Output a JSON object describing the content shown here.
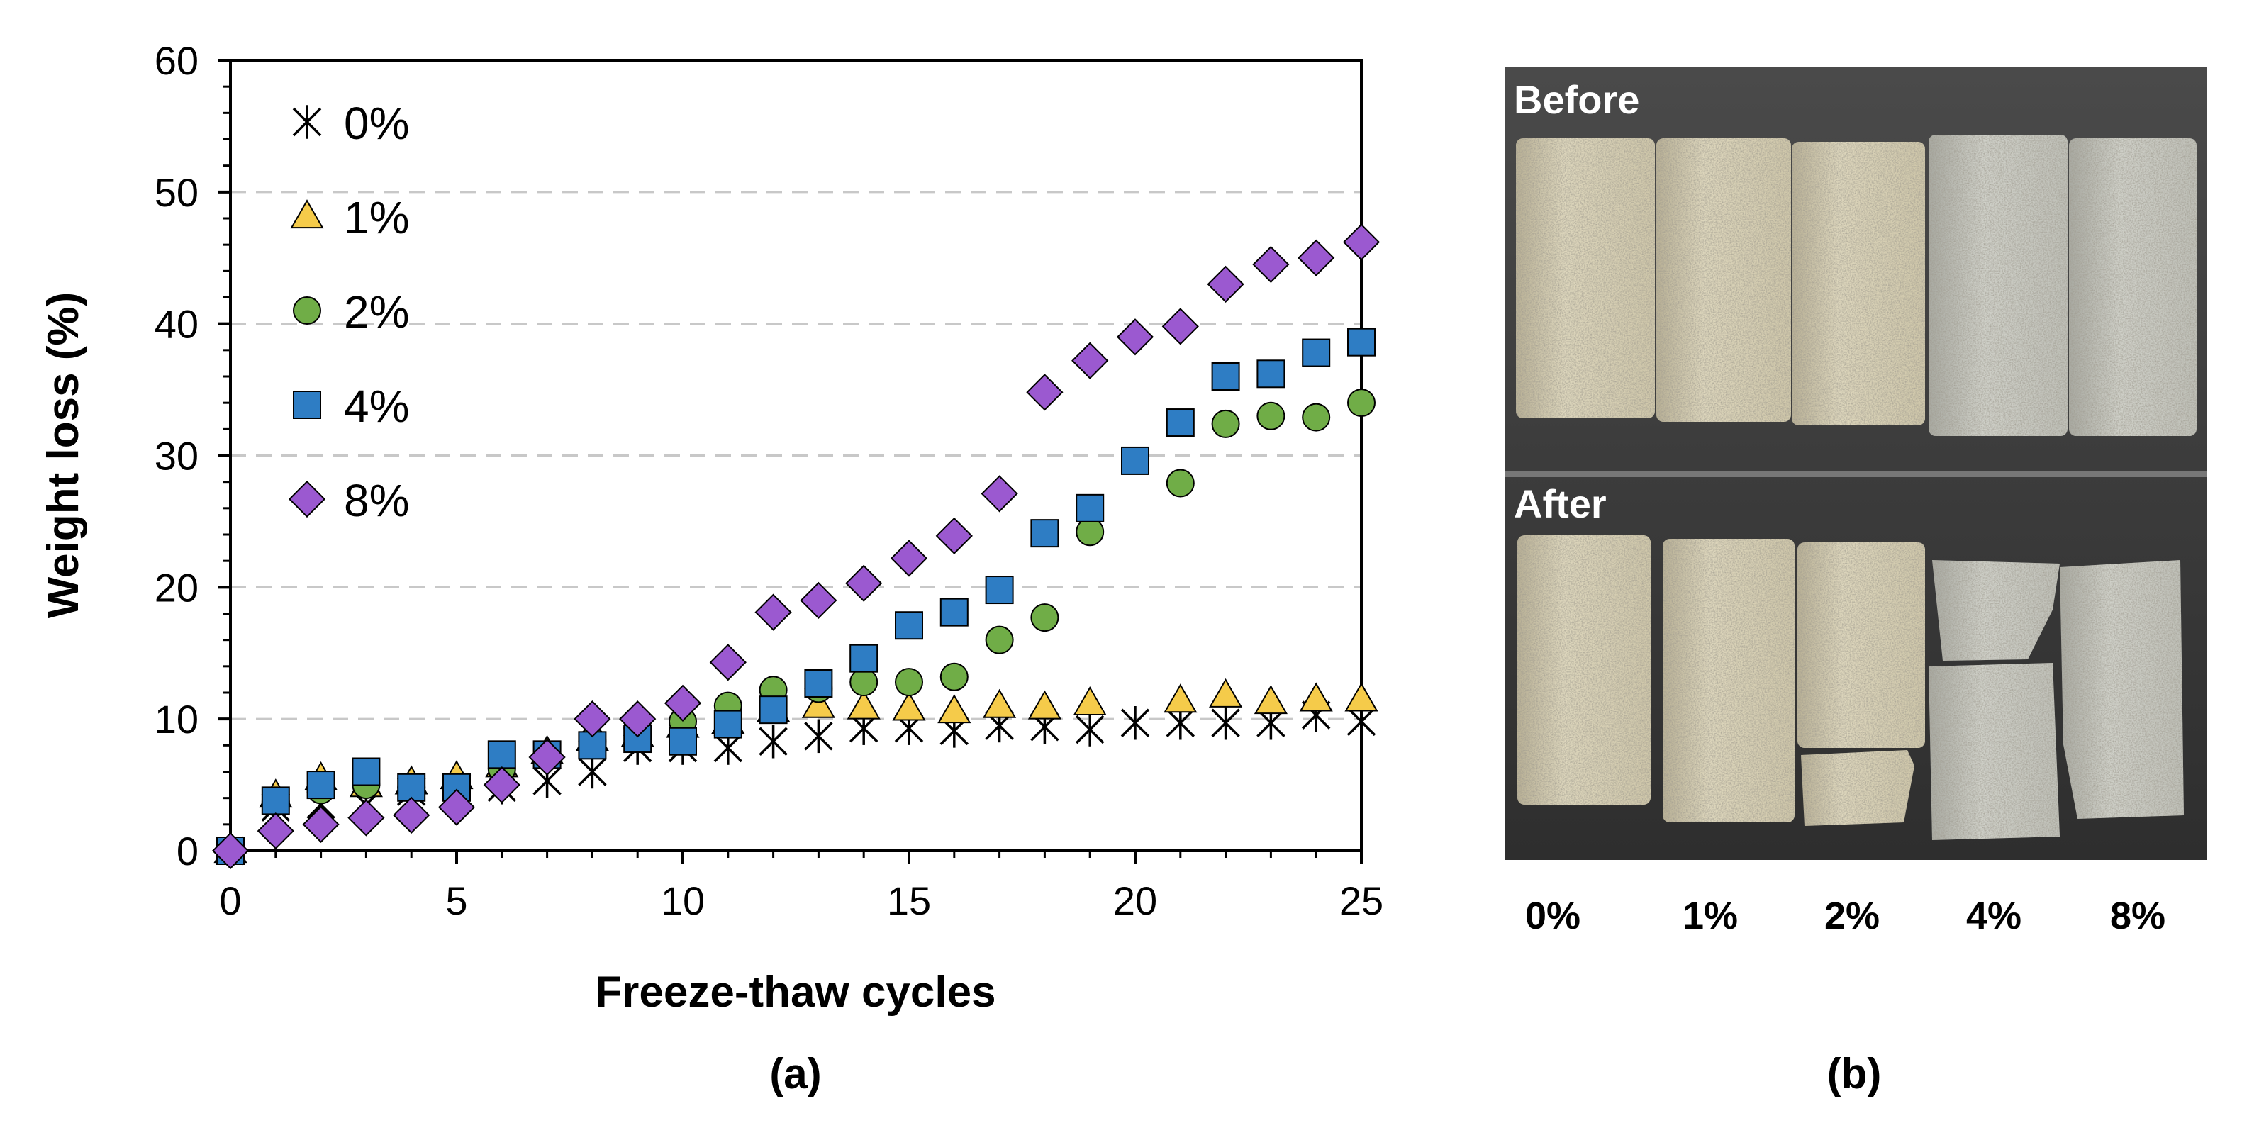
{
  "chart_data": {
    "type": "scatter",
    "panel_label": "(a)",
    "xlabel": "Freeze-thaw cycles",
    "ylabel": "Weight loss (%)",
    "xlim": [
      0,
      25
    ],
    "ylim": [
      0,
      60
    ],
    "x_ticks": [
      "0",
      "5",
      "10",
      "15",
      "20",
      "25"
    ],
    "y_ticks": [
      "0",
      "10",
      "20",
      "30",
      "40",
      "50",
      "60"
    ],
    "grid": "horizontal dashed",
    "legend_position": "top-left",
    "series": [
      {
        "name": "0%",
        "marker": "asterisk",
        "color": "#000000",
        "x": [
          0,
          1,
          2,
          3,
          4,
          5,
          6,
          7,
          8,
          9,
          10,
          11,
          12,
          13,
          14,
          15,
          16,
          17,
          18,
          19,
          20,
          21,
          22,
          23,
          24,
          25
        ],
        "y": [
          0,
          3.3,
          3.5,
          3.5,
          4.5,
          4.8,
          4.8,
          5.3,
          6.0,
          7.8,
          7.8,
          7.8,
          8.3,
          8.7,
          9.3,
          9.3,
          9.1,
          9.5,
          9.4,
          9.2,
          9.7,
          9.7,
          9.7,
          9.7,
          10.3,
          9.8
        ]
      },
      {
        "name": "1%",
        "marker": "triangle",
        "color": "#F5CB4A",
        "x": [
          0,
          1,
          2,
          3,
          4,
          5,
          6,
          7,
          8,
          9,
          10,
          11,
          12,
          13,
          14,
          15,
          16,
          17,
          18,
          19,
          20,
          21,
          22,
          23,
          24,
          25
        ],
        "y": [
          0,
          4.2,
          5.5,
          5.0,
          5.2,
          5.6,
          6.5,
          7.5,
          8.5,
          8.8,
          9.5,
          9.8,
          10.7,
          11.0,
          10.9,
          10.8,
          10.6,
          11.0,
          10.9,
          11.2,
          null,
          11.4,
          11.8,
          11.3,
          11.5,
          11.5
        ]
      },
      {
        "name": "2%",
        "marker": "circle",
        "color": "#70AD47",
        "x": [
          0,
          1,
          2,
          3,
          4,
          5,
          6,
          7,
          8,
          9,
          10,
          11,
          12,
          13,
          14,
          15,
          16,
          17,
          18,
          19,
          20,
          21,
          22,
          23,
          24,
          25
        ],
        "y": [
          0,
          3.7,
          4.6,
          5.0,
          4.8,
          4.7,
          6.2,
          7.2,
          8.3,
          9.3,
          9.8,
          11.0,
          12.2,
          12.3,
          12.8,
          12.8,
          13.2,
          16.0,
          17.7,
          24.2,
          null,
          27.9,
          32.4,
          33.0,
          32.9,
          34.0
        ]
      },
      {
        "name": "4%",
        "marker": "square",
        "color": "#2E7DC4",
        "x": [
          0,
          1,
          2,
          3,
          4,
          5,
          6,
          7,
          8,
          9,
          10,
          11,
          12,
          13,
          14,
          15,
          16,
          17,
          18,
          19,
          20,
          21,
          22,
          23,
          24,
          25
        ],
        "y": [
          0,
          3.8,
          5.0,
          6.0,
          4.8,
          4.8,
          7.3,
          7.3,
          8.0,
          8.5,
          8.3,
          9.6,
          10.7,
          12.7,
          14.6,
          17.1,
          18.1,
          19.8,
          24.1,
          26.0,
          29.6,
          32.5,
          36.0,
          36.2,
          37.8,
          38.6
        ]
      },
      {
        "name": "8%",
        "marker": "diamond",
        "color": "#9B59D0",
        "x": [
          0,
          1,
          2,
          3,
          4,
          5,
          6,
          7,
          8,
          9,
          10,
          11,
          12,
          13,
          14,
          15,
          16,
          17,
          18,
          19,
          20,
          21,
          22,
          23,
          24,
          25
        ],
        "y": [
          0,
          1.5,
          2.0,
          2.5,
          2.7,
          3.3,
          5.0,
          7.1,
          10.0,
          10.0,
          11.2,
          14.3,
          18.1,
          19.0,
          20.3,
          22.2,
          23.9,
          27.1,
          34.8,
          37.2,
          39.0,
          39.8,
          43.0,
          44.5,
          45.0,
          46.2
        ]
      }
    ]
  },
  "photo_panel": {
    "panel_label": "(b)",
    "before_label": "Before",
    "after_label": "After",
    "sample_labels": [
      "0%",
      "1%",
      "2%",
      "4%",
      "8%"
    ]
  }
}
